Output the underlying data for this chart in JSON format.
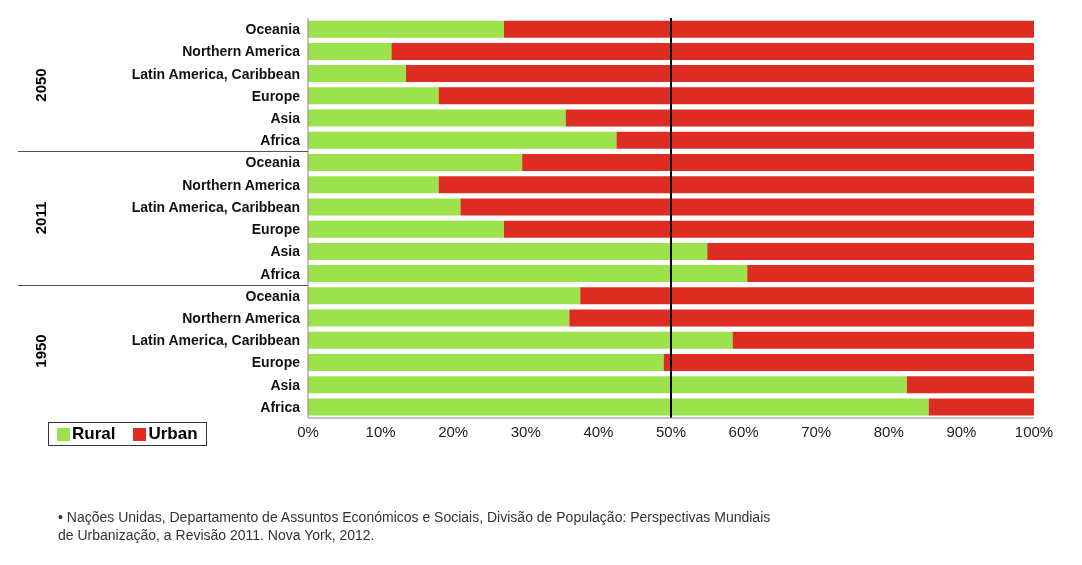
{
  "chart_data": {
    "type": "bar",
    "orientation": "horizontal",
    "stacked": true,
    "categories": [
      "Oceania",
      "Northern America",
      "Latin America, Caribbean",
      "Europe",
      "Asia",
      "Africa",
      "Oceania",
      "Northern America",
      "Latin America, Caribbean",
      "Europe",
      "Asia",
      "Africa",
      "Oceania",
      "Northern America",
      "Latin America, Caribbean",
      "Europe",
      "Asia",
      "Africa"
    ],
    "series": [
      {
        "name": "Rural",
        "color": "#9be24c",
        "values": [
          27,
          11.5,
          13.5,
          18,
          35.5,
          42.5,
          29.5,
          18,
          21,
          27,
          55,
          60.5,
          37.5,
          36,
          58.5,
          49,
          82.5,
          85.5
        ]
      },
      {
        "name": "Urban",
        "color": "#dd2c22",
        "values": [
          73,
          88.5,
          86.5,
          82,
          64.5,
          57.5,
          70.5,
          82,
          79,
          73,
          45,
          39.5,
          62.5,
          64,
          41.5,
          51,
          17.5,
          14.5
        ]
      }
    ],
    "xlim": [
      0,
      100
    ],
    "xticks": [
      {
        "value": 0,
        "label": "0%"
      },
      {
        "value": 10,
        "label": "10%"
      },
      {
        "value": 20,
        "label": "20%"
      },
      {
        "value": 30,
        "label": "30%"
      },
      {
        "value": 40,
        "label": "40%"
      },
      {
        "value": 50,
        "label": "50%"
      },
      {
        "value": 60,
        "label": "60%"
      },
      {
        "value": 70,
        "label": "70%"
      },
      {
        "value": 80,
        "label": "80%"
      },
      {
        "value": 90,
        "label": "90%"
      },
      {
        "value": 100,
        "label": "100%"
      }
    ],
    "ref_lines": [
      {
        "axis": "x",
        "value": 50,
        "color": "#000000"
      }
    ],
    "legend": "bottom left",
    "grid": false,
    "annotations": [
      "2050",
      "2011",
      "1950",
      "•   Nações Unidas, Departamento de Assuntos Económicos e Sociais, Divisão de População: Perspectivas Mundiais de Urbanização, a Revisão 2011. Nova York, 2012."
    ]
  }
}
